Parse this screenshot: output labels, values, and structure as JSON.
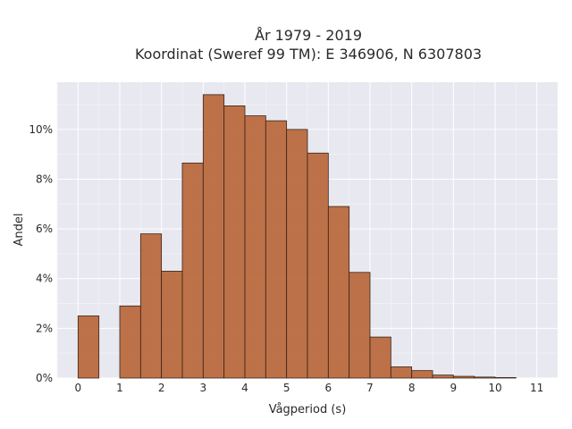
{
  "chart_data": {
    "type": "bar",
    "title_lines": [
      "År 1979 - 2019",
      "Koordinat (Sweref 99 TM): E 346906, N 6307803"
    ],
    "xlabel": "Vågperiod (s)",
    "ylabel": "Andel",
    "bin_width": 0.5,
    "bin_starts": [
      0,
      0.5,
      1,
      1.5,
      2,
      2.5,
      3,
      3.5,
      4,
      4.5,
      5,
      5.5,
      6,
      6.5,
      7,
      7.5,
      8,
      8.5,
      9,
      9.5,
      10,
      10.5
    ],
    "values": [
      2.5,
      0,
      2.9,
      5.8,
      4.3,
      8.65,
      11.4,
      10.95,
      10.55,
      10.35,
      10.0,
      9.05,
      6.9,
      4.25,
      1.65,
      0.45,
      0.3,
      0.12,
      0.07,
      0.04,
      0.02,
      0
    ],
    "xlim": [
      -0.5,
      11.5
    ],
    "ylim": [
      0,
      11.9
    ],
    "x_ticks": [
      "0",
      "1",
      "2",
      "3",
      "4",
      "5",
      "6",
      "7",
      "8",
      "9",
      "10",
      "11"
    ],
    "y_ticks": [
      "0%",
      "2%",
      "4%",
      "6%",
      "8%",
      "10%"
    ],
    "bar_color": "#b9663a",
    "bar_edge_color": "#3a2418",
    "plot_bg": "#e8e8f0",
    "grid": true
  }
}
